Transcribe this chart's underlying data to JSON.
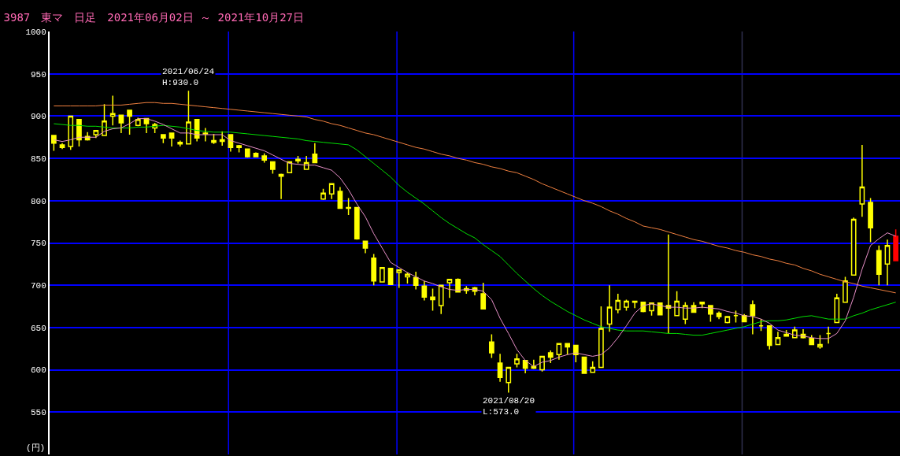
{
  "chart_data": {
    "type": "candlestick",
    "title": "3987　東マ　日足　2021年06月02日 ～ 2021年10月27日",
    "ylabel": "(円)",
    "categories": [
      null,
      null,
      null,
      null,
      null,
      null,
      null,
      null,
      null,
      null,
      null,
      null,
      null,
      null,
      null,
      null,
      null,
      null,
      null,
      null,
      null,
      null,
      null,
      null,
      null,
      null,
      null,
      null,
      null,
      null,
      null,
      null,
      null,
      null,
      null,
      null,
      null,
      null,
      null,
      null,
      null,
      null,
      null,
      null,
      null,
      null,
      null,
      null,
      null,
      null,
      null,
      null,
      null,
      null,
      null,
      null,
      null,
      null,
      null,
      null,
      null,
      null,
      null,
      null,
      null,
      null,
      null,
      null,
      null,
      null,
      null,
      null,
      null,
      null,
      null,
      null,
      null,
      null,
      null,
      null,
      null,
      null,
      null,
      null,
      null,
      null,
      null,
      null,
      null,
      null,
      null,
      null,
      null,
      null,
      null,
      null,
      null,
      null,
      null,
      null,
      null
    ],
    "ohlc": [
      [
        877,
        877,
        859,
        868
      ],
      [
        866,
        868,
        861,
        863
      ],
      [
        864,
        900,
        860,
        900
      ],
      [
        896,
        896,
        864,
        872
      ],
      [
        876,
        881,
        871,
        872
      ],
      [
        878,
        883,
        874,
        883
      ],
      [
        877,
        914,
        877,
        894
      ],
      [
        900,
        924,
        889,
        903
      ],
      [
        901,
        901,
        880,
        892
      ],
      [
        907,
        907,
        878,
        900
      ],
      [
        889,
        898,
        888,
        896
      ],
      [
        897,
        897,
        880,
        891
      ],
      [
        886,
        892,
        880,
        890
      ],
      [
        878,
        878,
        868,
        874
      ],
      [
        880,
        880,
        864,
        874
      ],
      [
        869,
        871,
        864,
        867
      ],
      [
        867,
        930,
        867,
        893
      ],
      [
        896,
        896,
        870,
        874
      ],
      [
        880,
        886,
        870,
        879
      ],
      [
        871,
        879,
        867,
        869
      ],
      [
        872,
        882,
        865,
        870
      ],
      [
        878,
        878,
        858,
        863
      ],
      [
        865,
        866,
        857,
        863
      ],
      [
        861,
        861,
        851,
        852
      ],
      [
        856,
        857,
        852,
        852
      ],
      [
        853,
        856,
        845,
        848
      ],
      [
        846,
        846,
        832,
        837
      ],
      [
        831,
        832,
        802,
        829
      ],
      [
        833,
        846,
        833,
        846
      ],
      [
        849,
        853,
        844,
        847
      ],
      [
        837,
        853,
        837,
        845
      ],
      [
        855,
        868,
        845,
        845
      ],
      [
        802,
        814,
        801,
        809
      ],
      [
        808,
        820,
        802,
        820
      ],
      [
        811,
        816,
        791,
        791
      ],
      [
        792,
        803,
        783,
        791
      ],
      [
        792,
        792,
        754,
        755
      ],
      [
        752,
        752,
        738,
        744
      ],
      [
        732,
        737,
        700,
        705
      ],
      [
        704,
        721,
        704,
        721
      ],
      [
        720,
        720,
        701,
        701
      ],
      [
        715,
        718,
        697,
        718
      ],
      [
        710,
        715,
        702,
        713
      ],
      [
        709,
        716,
        695,
        700
      ],
      [
        699,
        705,
        682,
        686
      ],
      [
        686,
        696,
        670,
        683
      ],
      [
        676,
        700,
        666,
        700
      ],
      [
        703,
        707,
        685,
        707
      ],
      [
        707,
        708,
        692,
        692
      ],
      [
        696,
        699,
        690,
        694
      ],
      [
        697,
        698,
        688,
        693
      ],
      [
        690,
        703,
        672,
        672
      ],
      [
        633,
        642,
        614,
        620
      ],
      [
        608,
        619,
        586,
        591
      ],
      [
        585,
        603,
        573,
        603
      ],
      [
        607,
        619,
        603,
        613
      ],
      [
        611,
        611,
        596,
        602
      ],
      [
        602,
        612,
        601,
        604
      ],
      [
        600,
        616,
        598,
        616
      ],
      [
        620,
        623,
        608,
        615
      ],
      [
        618,
        631,
        612,
        631
      ],
      [
        631,
        631,
        618,
        627
      ],
      [
        629,
        629,
        609,
        618
      ],
      [
        615,
        615,
        596,
        596
      ],
      [
        597,
        610,
        597,
        603
      ],
      [
        603,
        675,
        603,
        649
      ],
      [
        654,
        700,
        645,
        674
      ],
      [
        671,
        690,
        667,
        682
      ],
      [
        674,
        683,
        670,
        681
      ],
      [
        681,
        681,
        673,
        680
      ],
      [
        680,
        680,
        668,
        669
      ],
      [
        670,
        679,
        664,
        679
      ],
      [
        679,
        679,
        665,
        665
      ],
      [
        676,
        760,
        643,
        673
      ],
      [
        664,
        693,
        664,
        681
      ],
      [
        660,
        680,
        654,
        676
      ],
      [
        676,
        680,
        668,
        668
      ],
      [
        680,
        680,
        673,
        678
      ],
      [
        676,
        676,
        657,
        666
      ],
      [
        667,
        669,
        660,
        663
      ],
      [
        656,
        663,
        655,
        663
      ],
      [
        664,
        670,
        656,
        664
      ],
      [
        664,
        666,
        657,
        657
      ],
      [
        677,
        682,
        642,
        664
      ],
      [
        652,
        660,
        646,
        652
      ],
      [
        652,
        652,
        624,
        629
      ],
      [
        630,
        645,
        630,
        638
      ],
      [
        640,
        647,
        640,
        642
      ],
      [
        638,
        651,
        638,
        647
      ],
      [
        642,
        648,
        637,
        638
      ],
      [
        637,
        641,
        630,
        630
      ],
      [
        627,
        641,
        625,
        630
      ],
      [
        643,
        651,
        631,
        643
      ],
      [
        656,
        690,
        656,
        685
      ],
      [
        680,
        710,
        680,
        705
      ],
      [
        712,
        780,
        712,
        778
      ],
      [
        796,
        866,
        781,
        816
      ],
      [
        798,
        803,
        751,
        768
      ],
      [
        741,
        747,
        700,
        713
      ],
      [
        725,
        754,
        700,
        747
      ],
      [
        758,
        766,
        729,
        729
      ]
    ],
    "colors": [
      "#ffff00",
      "#ffff00",
      "#ffff00",
      "#ffff00",
      "#ffff00",
      "#ffff00",
      "#ffff00",
      "#ffff00",
      "#ffff00",
      "#ffff00",
      "#ffff00",
      "#ffff00",
      "#ffff00",
      "#ffff00",
      "#ffff00",
      "#ffff00",
      "#ffff00",
      "#ffff00",
      "#ffff00",
      "#ffff00",
      "#ffff00",
      "#ffff00",
      "#ffff00",
      "#ffff00",
      "#ffff00",
      "#ffff00",
      "#ffff00",
      "#ffff00",
      "#ffff00",
      "#ffff00",
      "#ffff00",
      "#ffff00",
      "#ffff00",
      "#ffff00",
      "#ffff00",
      "#ffff00",
      "#ffff00",
      "#ffff00",
      "#ffff00",
      "#ffff00",
      "#ffff00",
      "#ffff00",
      "#ffff00",
      "#ffff00",
      "#ffff00",
      "#ffff00",
      "#ffff00",
      "#ffff00",
      "#ffff00",
      "#ffff00",
      "#ffff00",
      "#ffff00",
      "#ffff00",
      "#ffff00",
      "#ffff00",
      "#ffff00",
      "#ffff00",
      "#ffff00",
      "#ffff00",
      "#ffff00",
      "#ffff00",
      "#ffff00",
      "#ffff00",
      "#ffff00",
      "#ffff00",
      "#ffff00",
      "#ffff00",
      "#ffff00",
      "#ffff00",
      "#ffff00",
      "#ffff00",
      "#ffff00",
      "#ffff00",
      "#ffff00",
      "#ffff00",
      "#ffff00",
      "#ffff00",
      "#ffff00",
      "#ffff00",
      "#ffff00",
      "#ffff00",
      "#ffff00",
      "#ffff00",
      "#ffff00",
      "#ffff00",
      "#ffff00",
      "#ffff00",
      "#ffff00",
      "#ffff00",
      "#ffff00",
      "#ffff00",
      "#ffff00",
      "#ffff00",
      "#ffff00",
      "#ffff00",
      "#ffff00",
      "#ffff00",
      "#ffff00",
      "#ffff00",
      "#ffff00",
      "#ff0000"
    ],
    "series": [
      {
        "type": "line",
        "color": "#f08040",
        "values": [
          912,
          912,
          912,
          912,
          912,
          912,
          913,
          913,
          913,
          914,
          915,
          916,
          916,
          915,
          915,
          914,
          913,
          912,
          911,
          910,
          909,
          908,
          907,
          906,
          905,
          904,
          903,
          902,
          901,
          900,
          899,
          896,
          894,
          891,
          889,
          886,
          883,
          880,
          878,
          875,
          872,
          869,
          866,
          863,
          861,
          858,
          855,
          853,
          850,
          848,
          845,
          843,
          840,
          838,
          835,
          833,
          829,
          825,
          820,
          816,
          812,
          808,
          804,
          800,
          797,
          793,
          788,
          784,
          779,
          775,
          770,
          768,
          766,
          763,
          760,
          757,
          754,
          752,
          749,
          746,
          744,
          741,
          739,
          736,
          734,
          731,
          729,
          726,
          724,
          720,
          717,
          713,
          710,
          707,
          704,
          702,
          699,
          697,
          695,
          693,
          691
        ]
      },
      {
        "type": "line",
        "color": "#00e000",
        "values": [
          891,
          890,
          889,
          889,
          888,
          888,
          887,
          886,
          886,
          886,
          887,
          887,
          888,
          889,
          888,
          887,
          885,
          883,
          882,
          881,
          881,
          881,
          880,
          879,
          878,
          877,
          876,
          875,
          874,
          873,
          871,
          870,
          869,
          868,
          867,
          866,
          860,
          852,
          844,
          836,
          828,
          818,
          810,
          803,
          796,
          788,
          780,
          773,
          767,
          761,
          756,
          748,
          741,
          734,
          724,
          714,
          705,
          696,
          688,
          681,
          675,
          669,
          664,
          659,
          655,
          651,
          649,
          647,
          646,
          646,
          646,
          645,
          644,
          643,
          643,
          642,
          641,
          641,
          643,
          645,
          647,
          649,
          651,
          654,
          657,
          658,
          658,
          659,
          661,
          663,
          664,
          662,
          660,
          660,
          660,
          664,
          667,
          671,
          674,
          677,
          680
        ]
      },
      {
        "type": "line",
        "color": "#e890c8",
        "values": [
          872,
          870,
          872,
          875,
          875,
          875,
          882,
          885,
          886,
          891,
          897,
          897,
          894,
          890,
          885,
          880,
          880,
          878,
          878,
          878,
          878,
          871,
          868,
          865,
          862,
          859,
          854,
          849,
          844,
          843,
          842,
          842,
          839,
          836,
          827,
          813,
          796,
          781,
          761,
          744,
          727,
          721,
          715,
          710,
          705,
          702,
          698,
          695,
          694,
          695,
          695,
          693,
          683,
          661,
          643,
          624,
          611,
          604,
          609,
          611,
          615,
          618,
          620,
          618,
          616,
          618,
          626,
          638,
          652,
          667,
          676,
          678,
          676,
          674,
          674,
          673,
          673,
          674,
          673,
          672,
          669,
          667,
          664,
          663,
          660,
          655,
          647,
          644,
          641,
          640,
          638,
          637,
          637,
          643,
          658,
          686,
          719,
          747,
          755,
          762,
          758
        ]
      }
    ],
    "annotations": [
      {
        "text": "2021/06/24\nH:930.0",
        "y": 930
      },
      {
        "text": "2021/08/20\nL:573.0",
        "y": 573
      }
    ],
    "ylim": [
      500,
      1000
    ],
    "yticks": [
      550,
      600,
      650,
      700,
      750,
      800,
      850,
      900,
      950,
      1000
    ],
    "grid": "y",
    "tick_labels": "y"
  }
}
